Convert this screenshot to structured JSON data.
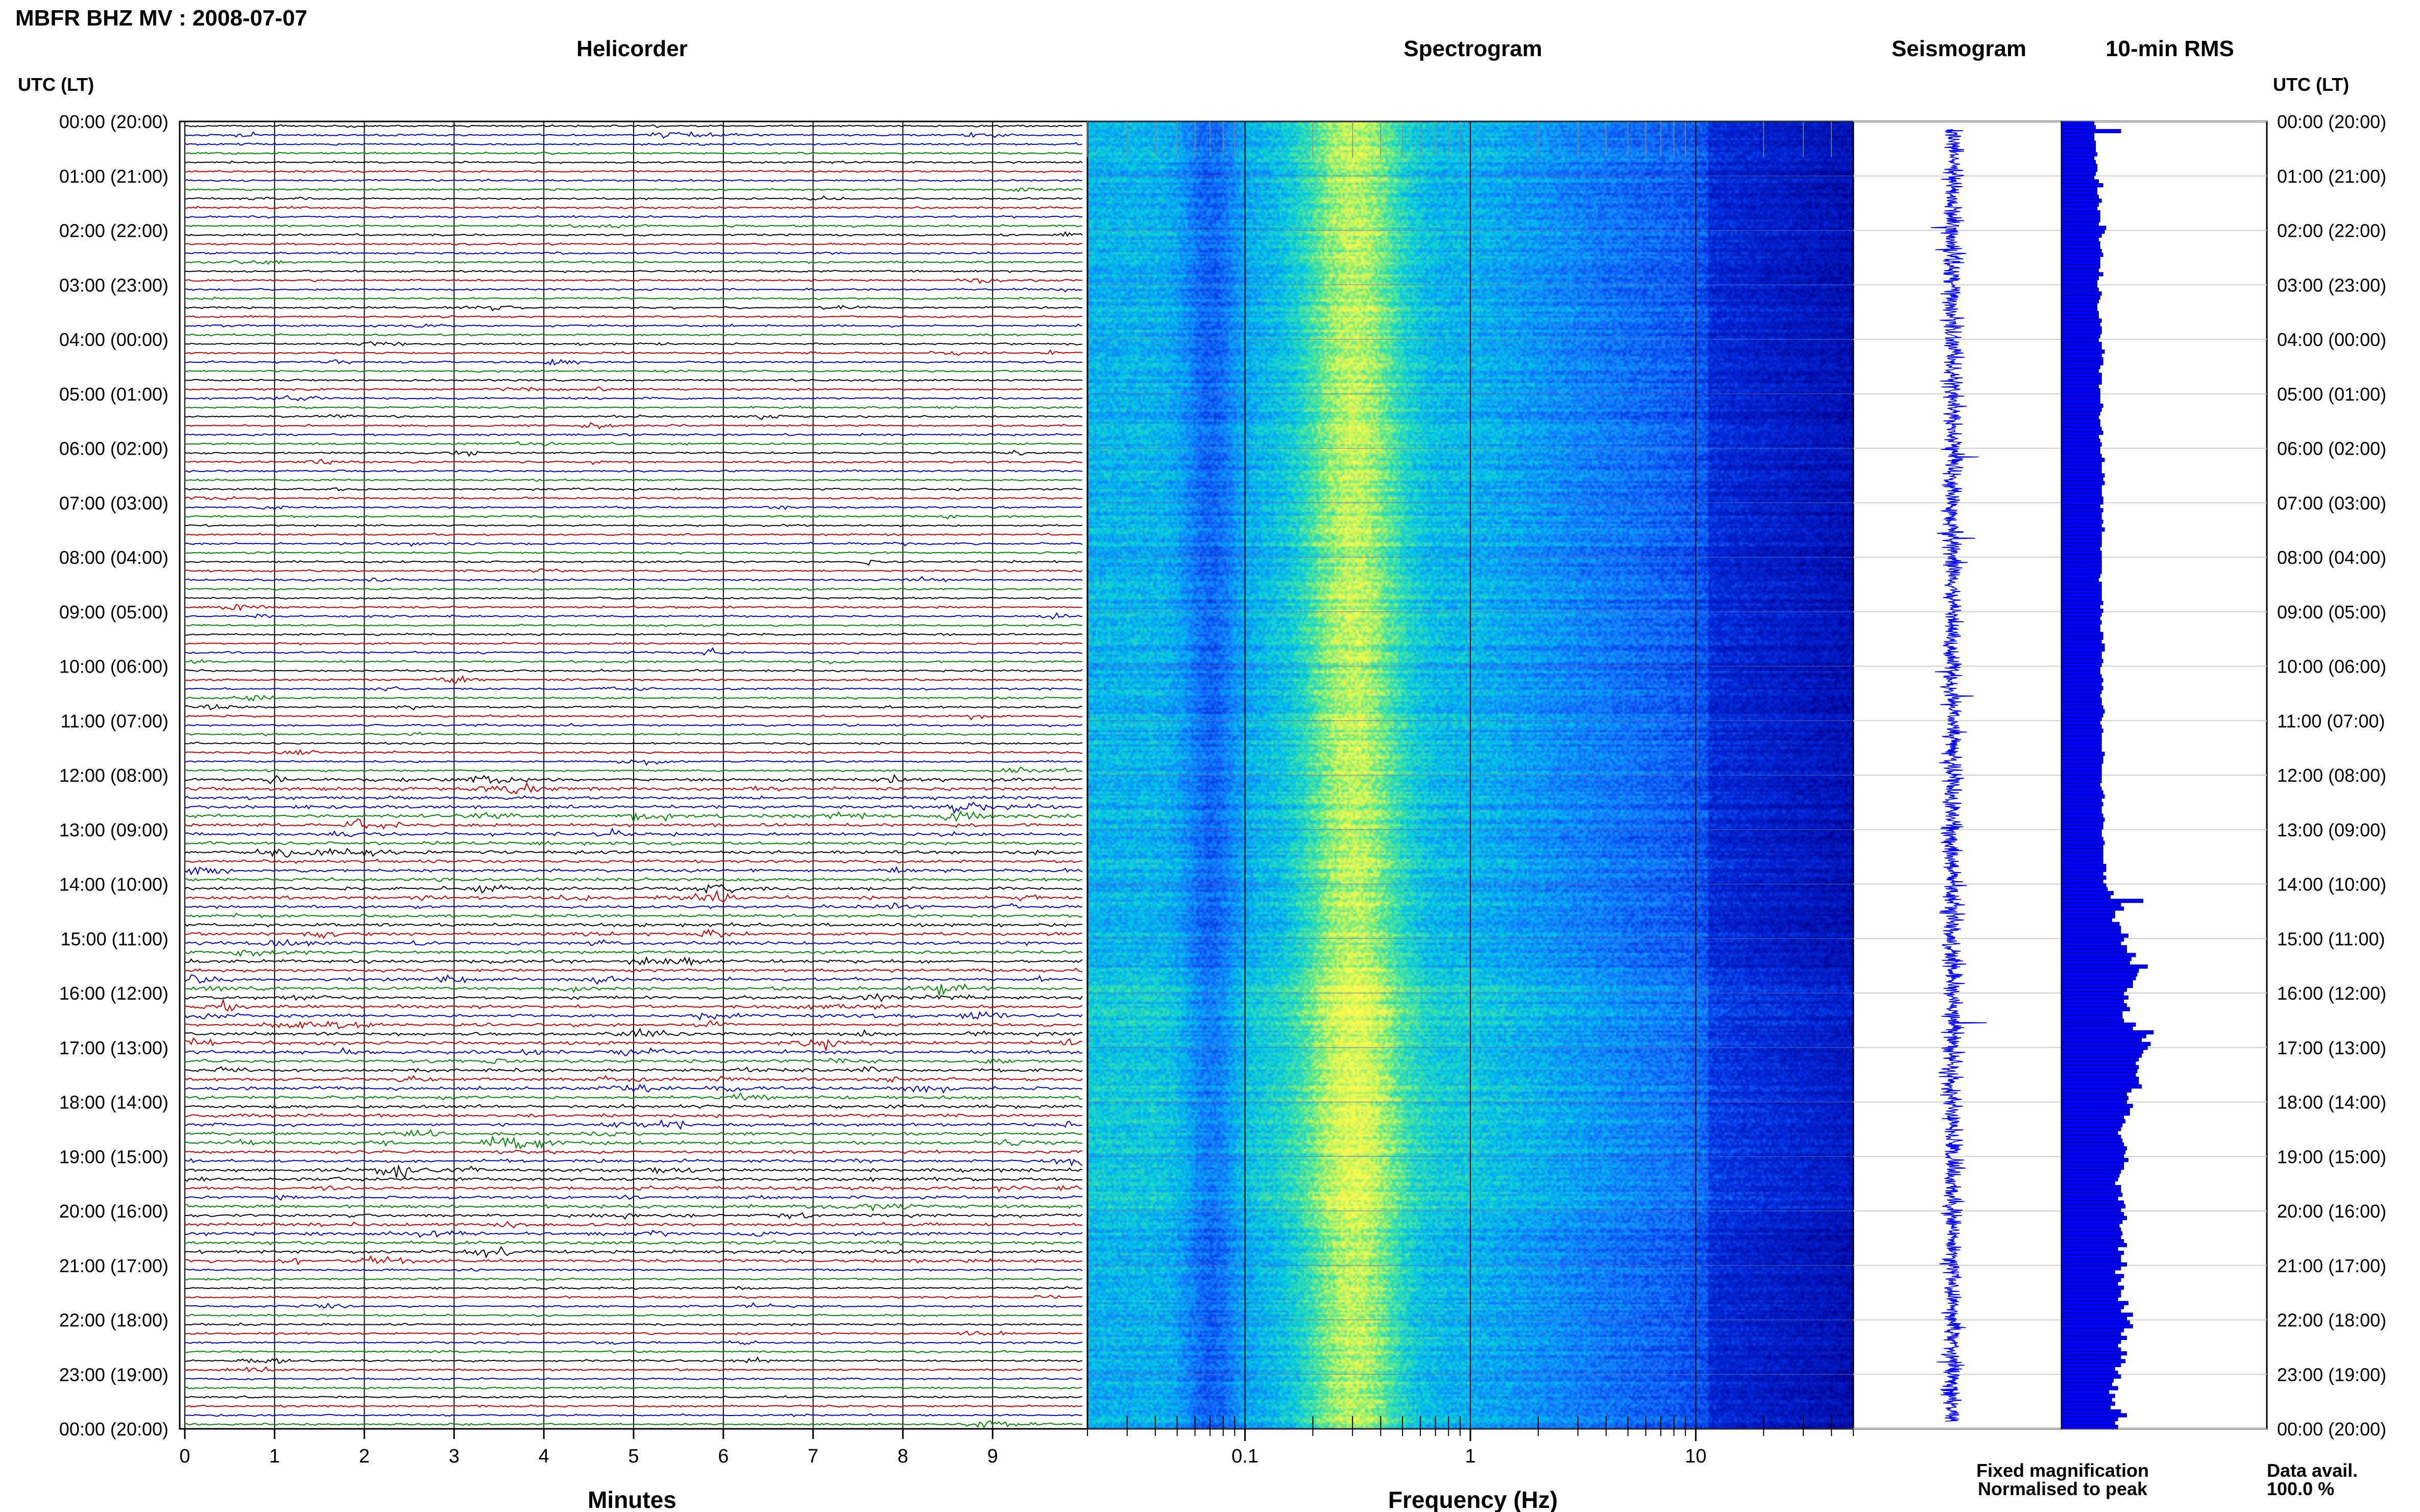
{
  "header": {
    "title": "MBFR BHZ MV : 2008-07-07"
  },
  "panels": {
    "helicorder": "Helicorder",
    "spectrogram": "Spectrogram",
    "seismogram": "Seismogram",
    "rms": "10-min RMS"
  },
  "time_axis": {
    "label": "UTC (LT)",
    "ticks": [
      "00:00 (20:00)",
      "01:00 (21:00)",
      "02:00 (22:00)",
      "03:00 (23:00)",
      "04:00 (00:00)",
      "05:00 (01:00)",
      "06:00 (02:00)",
      "07:00 (03:00)",
      "08:00 (04:00)",
      "09:00 (05:00)",
      "10:00 (06:00)",
      "11:00 (07:00)",
      "12:00 (08:00)",
      "13:00 (09:00)",
      "14:00 (10:00)",
      "15:00 (11:00)",
      "16:00 (12:00)",
      "17:00 (13:00)",
      "18:00 (14:00)",
      "19:00 (15:00)",
      "20:00 (16:00)",
      "21:00 (17:00)",
      "22:00 (18:00)",
      "23:00 (19:00)",
      "00:00 (20:00)"
    ]
  },
  "legend": {
    "fixed": "Fixed magnification",
    "normalised": "Normalised to peak",
    "fixed_color": "#1a1aff",
    "normalised_color": "#ff1a1a"
  },
  "data_availability": {
    "label": "Data avail.",
    "value": "100.0 %"
  },
  "chart_data": [
    {
      "type": "line",
      "name": "helicorder",
      "title": "Helicorder",
      "xlabel": "Minutes",
      "xlim": [
        0,
        10
      ],
      "xticks": [
        "0",
        "1",
        "2",
        "3",
        "4",
        "5",
        "6",
        "7",
        "8",
        "9"
      ],
      "lines_per_hour": 6,
      "hours": 24,
      "trace_colors": [
        "#000000",
        "#cc0000",
        "#0000cc",
        "#008800"
      ],
      "events": [
        {
          "hour": 0,
          "line": 1,
          "minute": 5.35,
          "amp": 3.0,
          "color": "#0000cc"
        },
        {
          "hour": 12,
          "line": 3,
          "minute": 8.6,
          "amp": 3.0,
          "color": "#0000cc"
        },
        {
          "hour": 12,
          "line": 4,
          "minute": 8.55,
          "amp": 2.6,
          "color": "#008800"
        },
        {
          "hour": 16,
          "line": 3,
          "minute": 1.5,
          "amp": 2.0,
          "color": "#cc0000"
        },
        {
          "hour": 18,
          "line": 4,
          "minute": 3.5,
          "amp": 3.0,
          "color": "#008800"
        },
        {
          "hour": 19,
          "line": 1,
          "minute": 2.2,
          "amp": 2.0,
          "color": "#000000"
        },
        {
          "hour": 23,
          "line": 5,
          "minute": 8.9,
          "amp": 2.0,
          "color": "#008800"
        }
      ]
    },
    {
      "type": "heatmap",
      "name": "spectrogram",
      "title": "Spectrogram",
      "xlabel": "Frequency (Hz)",
      "x_scale": "log",
      "xlim": [
        0.02,
        50
      ],
      "xticks": [
        "0.1",
        "1",
        "10"
      ],
      "ylim_hours": [
        0,
        24
      ],
      "peak_frequency_hz": 0.3
    },
    {
      "type": "line",
      "name": "seismogram",
      "title": "Seismogram",
      "ylim_hours": [
        0,
        24
      ]
    },
    {
      "type": "bar",
      "name": "rms_10min",
      "title": "10-min RMS",
      "orientation": "horizontal",
      "interval_minutes": 10,
      "values": [
        0.22,
        0.23,
        0.4,
        0.22,
        0.22,
        0.23,
        0.23,
        0.23,
        0.24,
        0.22,
        0.23,
        0.24,
        0.24,
        0.23,
        0.22,
        0.25,
        0.28,
        0.24,
        0.24,
        0.25,
        0.27,
        0.25,
        0.24,
        0.26,
        0.26,
        0.26,
        0.25,
        0.3,
        0.29,
        0.27,
        0.25,
        0.26,
        0.26,
        0.27,
        0.28,
        0.26,
        0.26,
        0.26,
        0.25,
        0.28,
        0.25,
        0.24,
        0.24,
        0.25,
        0.27,
        0.26,
        0.25,
        0.24,
        0.24,
        0.25,
        0.25,
        0.27,
        0.26,
        0.27,
        0.27,
        0.26,
        0.25,
        0.27,
        0.27,
        0.29,
        0.27,
        0.28,
        0.28,
        0.26,
        0.25,
        0.27,
        0.27,
        0.27,
        0.25,
        0.26,
        0.26,
        0.26,
        0.26,
        0.28,
        0.27,
        0.26,
        0.25,
        0.26,
        0.26,
        0.27,
        0.28,
        0.25,
        0.26,
        0.27,
        0.26,
        0.26,
        0.27,
        0.29,
        0.27,
        0.27,
        0.27,
        0.29,
        0.28,
        0.29,
        0.27,
        0.27,
        0.27,
        0.28,
        0.28,
        0.26,
        0.28,
        0.27,
        0.27,
        0.28,
        0.27,
        0.29,
        0.27,
        0.27,
        0.27,
        0.27,
        0.26,
        0.27,
        0.27,
        0.27,
        0.27,
        0.27,
        0.27,
        0.26,
        0.25,
        0.27,
        0.27,
        0.27,
        0.27,
        0.27,
        0.28,
        0.26,
        0.28,
        0.27,
        0.26,
        0.27,
        0.26,
        0.26,
        0.28,
        0.28,
        0.27,
        0.29,
        0.29,
        0.27,
        0.27,
        0.28,
        0.27,
        0.26,
        0.26,
        0.27,
        0.28,
        0.27,
        0.28,
        0.27,
        0.26,
        0.27,
        0.27,
        0.28,
        0.29,
        0.28,
        0.27,
        0.26,
        0.27,
        0.28,
        0.27,
        0.27,
        0.27,
        0.27,
        0.27,
        0.29,
        0.28,
        0.28,
        0.27,
        0.27,
        0.27,
        0.27,
        0.27,
        0.26,
        0.27,
        0.28,
        0.29,
        0.27,
        0.28,
        0.27,
        0.27,
        0.28,
        0.29,
        0.28,
        0.28,
        0.27,
        0.27,
        0.28,
        0.29,
        0.28,
        0.28,
        0.28,
        0.28,
        0.28,
        0.3,
        0.3,
        0.28,
        0.3,
        0.28,
        0.3,
        0.31,
        0.35,
        0.33,
        0.55,
        0.4,
        0.42,
        0.36,
        0.36,
        0.34,
        0.39,
        0.4,
        0.4,
        0.45,
        0.42,
        0.4,
        0.44,
        0.44,
        0.5,
        0.47,
        0.46,
        0.58,
        0.52,
        0.51,
        0.5,
        0.48,
        0.48,
        0.44,
        0.42,
        0.45,
        0.42,
        0.44,
        0.46,
        0.41,
        0.41,
        0.42,
        0.5,
        0.48,
        0.62,
        0.57,
        0.54,
        0.6,
        0.58,
        0.55,
        0.54,
        0.52,
        0.5,
        0.52,
        0.51,
        0.5,
        0.52,
        0.52,
        0.54,
        0.47,
        0.44,
        0.45,
        0.44,
        0.48,
        0.46,
        0.46,
        0.42,
        0.43,
        0.41,
        0.4,
        0.38,
        0.4,
        0.41,
        0.42,
        0.44,
        0.43,
        0.42,
        0.45,
        0.42,
        0.42,
        0.4,
        0.39,
        0.38,
        0.36,
        0.4,
        0.4,
        0.41,
        0.38,
        0.42,
        0.43,
        0.4,
        0.42,
        0.44,
        0.41,
        0.39,
        0.4,
        0.41,
        0.4,
        0.42,
        0.44,
        0.38,
        0.42,
        0.4,
        0.4,
        0.44,
        0.4,
        0.36,
        0.42,
        0.4,
        0.38,
        0.42,
        0.4,
        0.4,
        0.38,
        0.45,
        0.42,
        0.4,
        0.48,
        0.44,
        0.46,
        0.48,
        0.42,
        0.4,
        0.44,
        0.4,
        0.38,
        0.4,
        0.44,
        0.4,
        0.43,
        0.4,
        0.36,
        0.38,
        0.4,
        0.35,
        0.34,
        0.38,
        0.32,
        0.36,
        0.34,
        0.36,
        0.33,
        0.4,
        0.44,
        0.38,
        0.36,
        0.38
      ]
    }
  ]
}
